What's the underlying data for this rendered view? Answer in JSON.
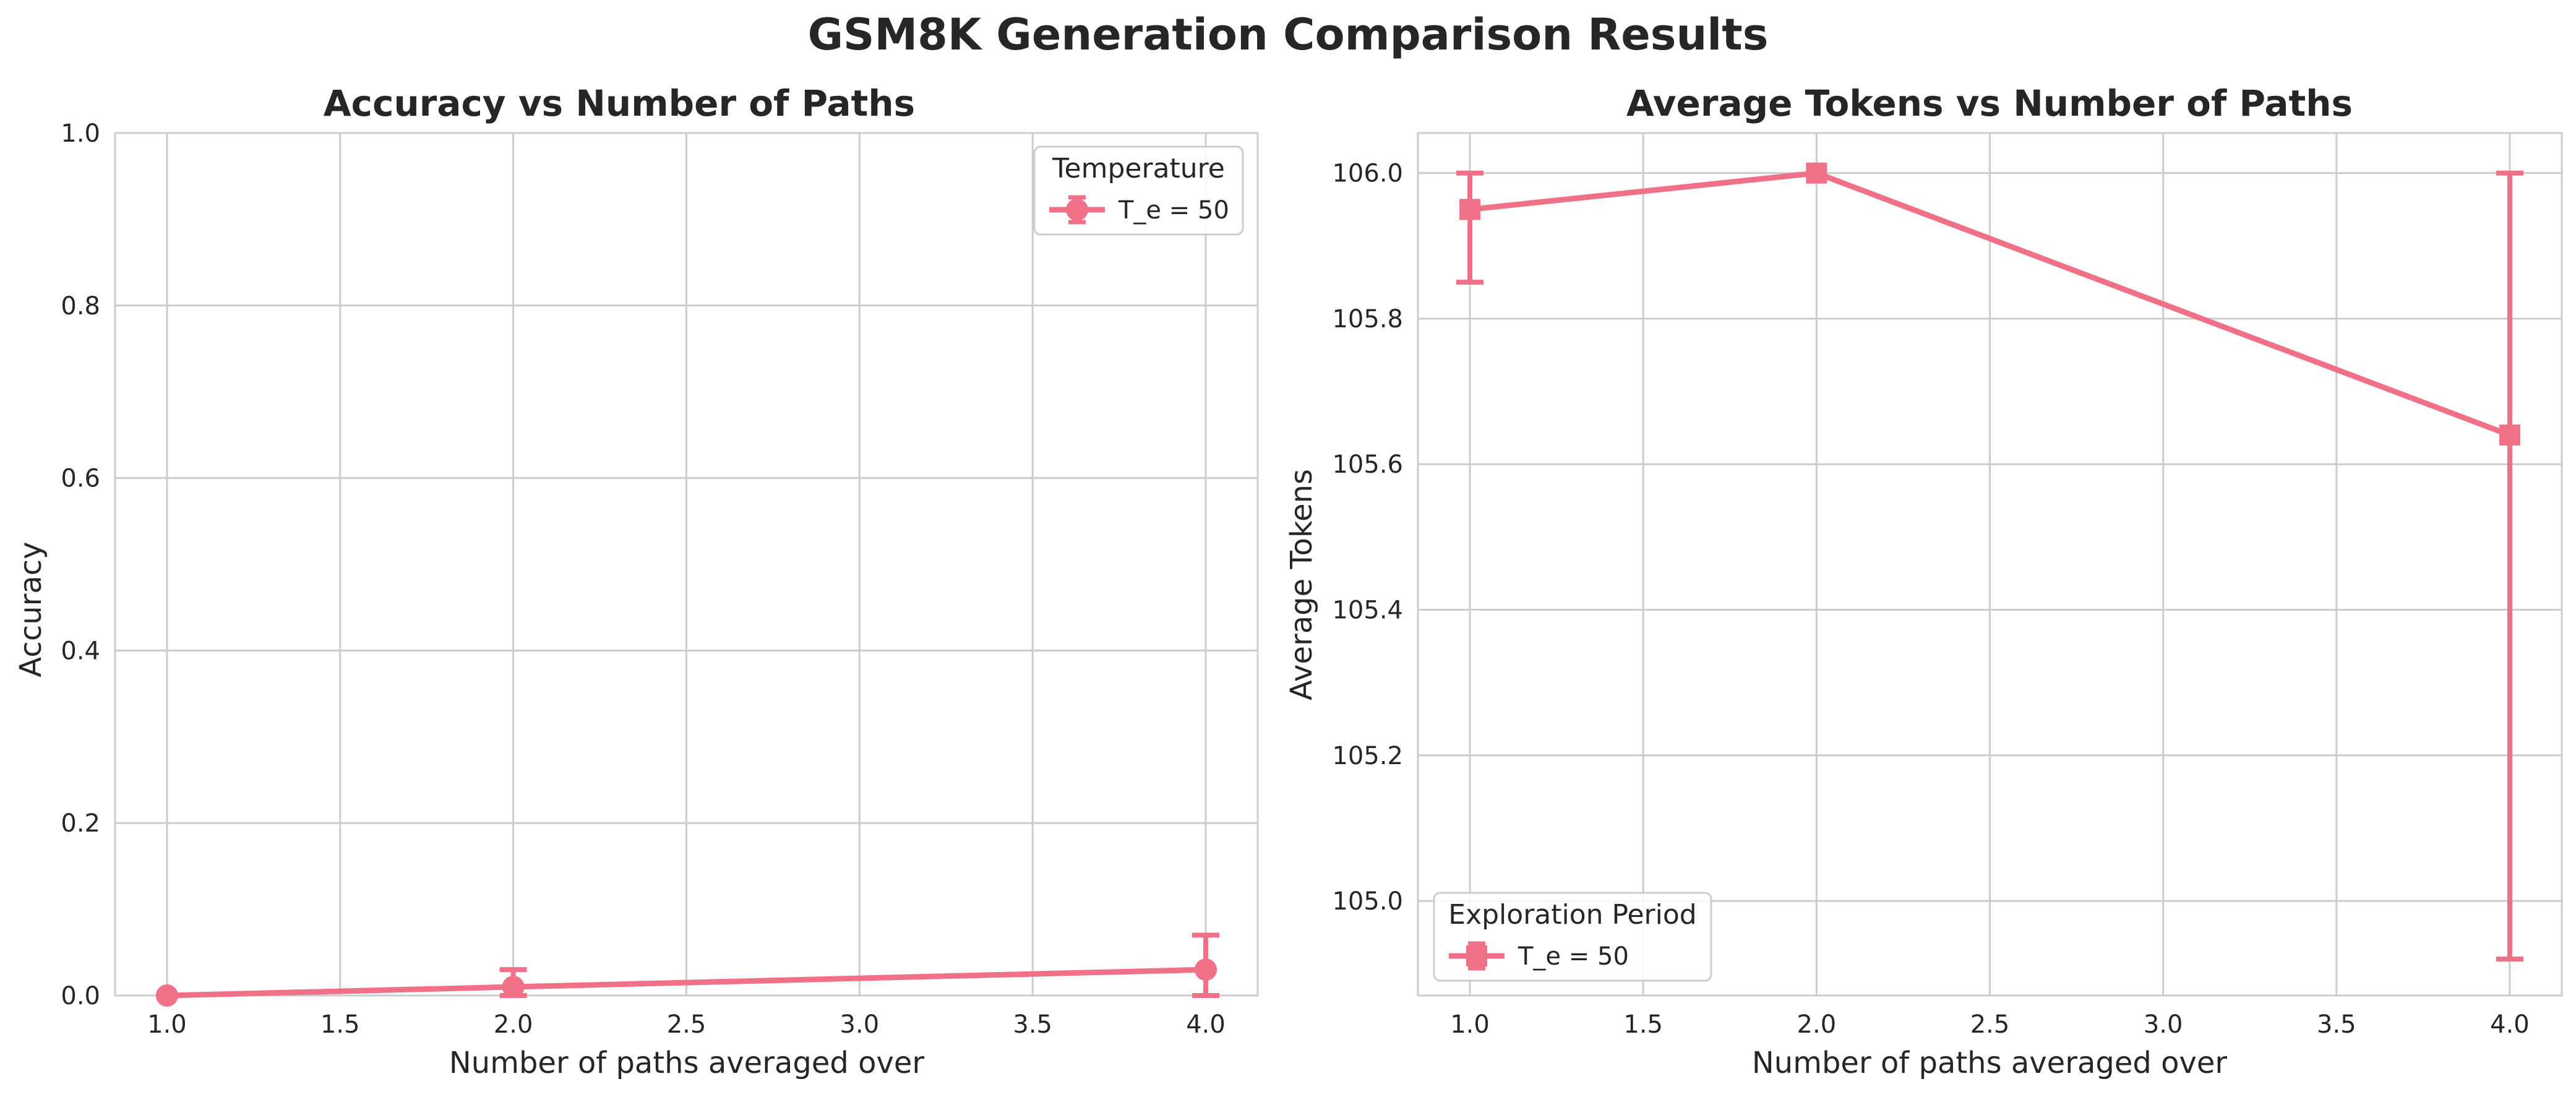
{
  "title": "GSM8K Generation Comparison Results",
  "series_color": "#f07088",
  "chart_data": [
    {
      "type": "line",
      "title": "Accuracy vs Number of Paths",
      "xlabel": "Number of paths averaged over",
      "ylabel": "Accuracy",
      "xlim": [
        0.85,
        4.15
      ],
      "ylim": [
        0.0,
        1.0
      ],
      "xticks": [
        1.0,
        1.5,
        2.0,
        2.5,
        3.0,
        3.5,
        4.0
      ],
      "xtick_labels": [
        "1.0",
        "1.5",
        "2.0",
        "2.5",
        "3.0",
        "3.5",
        "4.0"
      ],
      "yticks": [
        0.0,
        0.2,
        0.4,
        0.6,
        0.8,
        1.0
      ],
      "ytick_labels": [
        "0.0",
        "0.2",
        "0.4",
        "0.6",
        "0.8",
        "1.0"
      ],
      "grid": true,
      "marker": "circle",
      "legend": {
        "title": "Temperature",
        "placement": "top-right"
      },
      "series": [
        {
          "name": "T_e = 50",
          "x": [
            1.0,
            2.0,
            4.0
          ],
          "y": [
            0.0,
            0.01,
            0.03
          ],
          "err_low": [
            0.0,
            0.0,
            0.0
          ],
          "err_high": [
            0.0,
            0.03,
            0.07
          ]
        }
      ]
    },
    {
      "type": "line",
      "title": "Average Tokens vs Number of Paths",
      "xlabel": "Number of paths averaged over",
      "ylabel": "Average Tokens",
      "xlim": [
        0.85,
        4.15
      ],
      "ylim": [
        104.87,
        106.055
      ],
      "xticks": [
        1.0,
        1.5,
        2.0,
        2.5,
        3.0,
        3.5,
        4.0
      ],
      "xtick_labels": [
        "1.0",
        "1.5",
        "2.0",
        "2.5",
        "3.0",
        "3.5",
        "4.0"
      ],
      "yticks": [
        105.0,
        105.2,
        105.4,
        105.6,
        105.8,
        106.0
      ],
      "ytick_labels": [
        "105.0",
        "105.2",
        "105.4",
        "105.6",
        "105.8",
        "106.0"
      ],
      "grid": true,
      "marker": "square",
      "legend": {
        "title": "Exploration Period",
        "placement": "bottom-left"
      },
      "series": [
        {
          "name": "T_e = 50",
          "x": [
            1.0,
            2.0,
            4.0
          ],
          "y": [
            105.95,
            106.0,
            105.64
          ],
          "err_low": [
            105.85,
            106.0,
            104.92
          ],
          "err_high": [
            106.0,
            106.0,
            106.0
          ]
        }
      ]
    }
  ]
}
